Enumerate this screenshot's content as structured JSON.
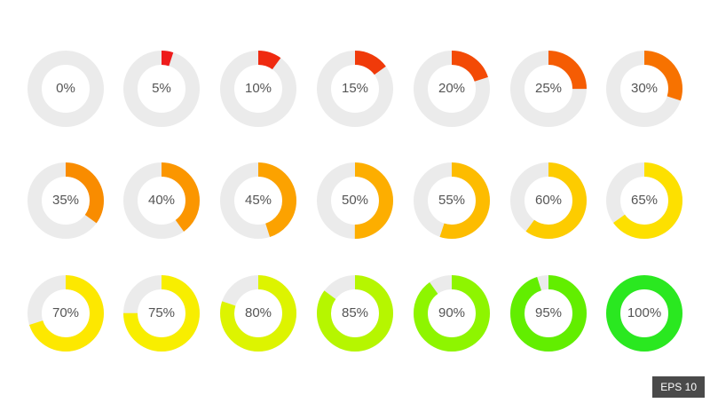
{
  "badge": "EPS 10",
  "track_color": "#ebebeb",
  "label_color": "#555555",
  "rings": [
    {
      "label": "0%",
      "value": 0,
      "color": "#ee1c1c"
    },
    {
      "label": "5%",
      "value": 5,
      "color": "#ee1c1c"
    },
    {
      "label": "10%",
      "value": 10,
      "color": "#ef2a10"
    },
    {
      "label": "15%",
      "value": 15,
      "color": "#f03a0a"
    },
    {
      "label": "20%",
      "value": 20,
      "color": "#f34a06"
    },
    {
      "label": "25%",
      "value": 25,
      "color": "#f55c03"
    },
    {
      "label": "30%",
      "value": 30,
      "color": "#f77200"
    },
    {
      "label": "35%",
      "value": 35,
      "color": "#f98c00"
    },
    {
      "label": "40%",
      "value": 40,
      "color": "#fb9600"
    },
    {
      "label": "45%",
      "value": 45,
      "color": "#fca200"
    },
    {
      "label": "50%",
      "value": 50,
      "color": "#fdae00"
    },
    {
      "label": "55%",
      "value": 55,
      "color": "#fdbc00"
    },
    {
      "label": "60%",
      "value": 60,
      "color": "#fdcc00"
    },
    {
      "label": "65%",
      "value": 65,
      "color": "#fde000"
    },
    {
      "label": "70%",
      "value": 70,
      "color": "#fde800"
    },
    {
      "label": "75%",
      "value": 75,
      "color": "#f8ee00"
    },
    {
      "label": "80%",
      "value": 80,
      "color": "#ddf400"
    },
    {
      "label": "85%",
      "value": 85,
      "color": "#b6f600"
    },
    {
      "label": "90%",
      "value": 90,
      "color": "#8ef500"
    },
    {
      "label": "95%",
      "value": 95,
      "color": "#62ee00"
    },
    {
      "label": "100%",
      "value": 100,
      "color": "#2ae820"
    }
  ]
}
